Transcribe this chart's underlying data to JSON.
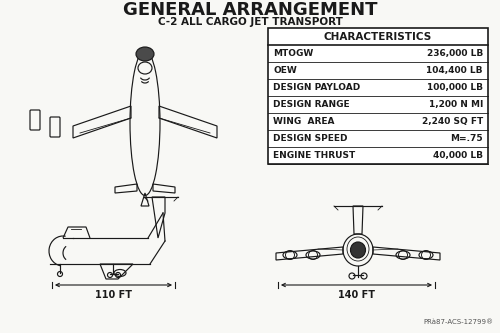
{
  "title": "GENERAL ARRANGEMENT",
  "subtitle": "C-2 ALL CARGO JET TRANSPORT",
  "bg_color": "#f8f8f5",
  "line_color": "#1a1a1a",
  "characteristics_header": "CHARACTERISTICS",
  "characteristics": [
    [
      "MTOGW",
      "236,000 LB"
    ],
    [
      "OEW",
      "104,400 LB"
    ],
    [
      "DESIGN PAYLOAD",
      "100,000 LB"
    ],
    [
      "DESIGN RANGE",
      "1,200 N MI"
    ],
    [
      "WING  AREA",
      "2,240 SQ FT"
    ],
    [
      "DESIGN SPEED",
      "M=.75"
    ],
    [
      "ENGINE THRUST",
      "40,000 LB"
    ]
  ],
  "dim_left": "110 FT",
  "dim_right": "140 FT",
  "footnote": "PRà87-ACS-12799®",
  "title_fontsize": 13,
  "subtitle_fontsize": 7.5,
  "table_fontsize": 6.5,
  "table_header_fontsize": 7.5
}
